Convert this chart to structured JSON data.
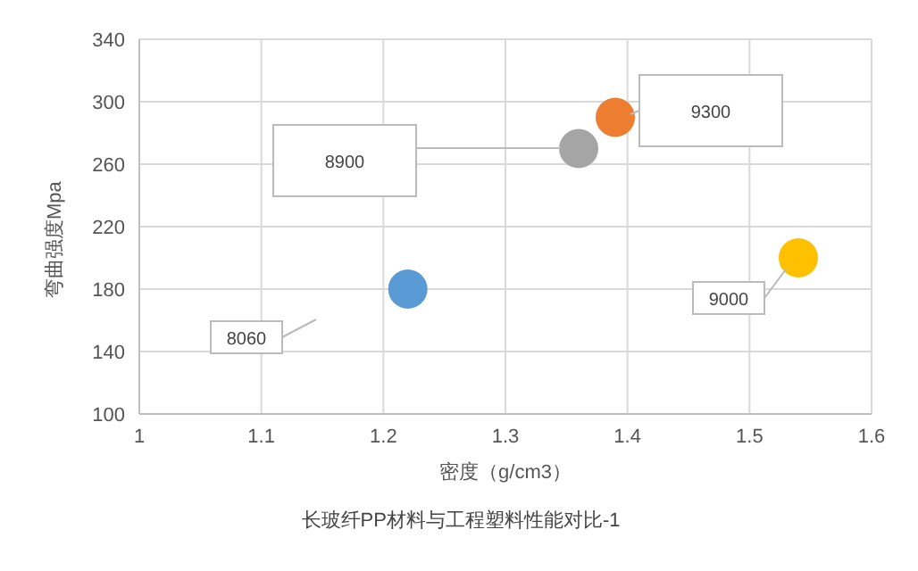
{
  "chart_data": {
    "type": "scatter",
    "title": "长玻纤PP材料与工程塑料性能对比-1",
    "xlabel": "密度（g/cm3）",
    "ylabel": "弯曲强度Mpa",
    "series": [
      {
        "color": "#5b9bd5",
        "x": [
          1.22
        ],
        "values": [
          180
        ]
      },
      {
        "color": "#a5a5a5",
        "x": [
          1.36
        ],
        "values": [
          270
        ]
      },
      {
        "color": "#ed7d31",
        "x": [
          1.39
        ],
        "values": [
          290
        ]
      },
      {
        "color": "#ffc000",
        "x": [
          1.54
        ],
        "values": [
          200
        ]
      }
    ],
    "annotations": [
      "8060",
      "8900",
      "9300",
      "9000"
    ],
    "xlim": [
      1,
      1.6
    ],
    "xticks": [
      1,
      1.1,
      1.2,
      1.3,
      1.4,
      1.5,
      1.6
    ],
    "ylim": [
      100,
      340
    ],
    "yticks": [
      100,
      140,
      180,
      220,
      260,
      300,
      340
    ],
    "grid": true,
    "marker": "circle"
  }
}
